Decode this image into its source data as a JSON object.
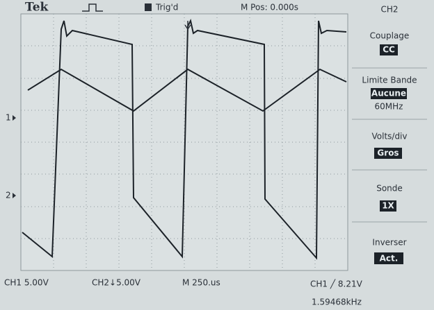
{
  "header": {
    "brand": "Tek",
    "trigger": "Trig'd",
    "position": "M Pos: 0.000s",
    "channel": "CH2"
  },
  "markers": [
    "1",
    "2"
  ],
  "menu": [
    {
      "label": "Couplage",
      "value": "CC"
    },
    {
      "label": "Limite Bande",
      "value": "Aucune",
      "note": "60MHz"
    },
    {
      "label": "Volts/div",
      "value": "Gros"
    },
    {
      "label": "Sonde",
      "value": "1X"
    },
    {
      "label": "Inverser",
      "value": "Act."
    }
  ],
  "footer": {
    "ch1": "CH1  5.00V",
    "ch2": "CH2↓5.00V",
    "time": "M 250.us",
    "trigger": "CH1 ╱ 8.21V",
    "frequency": "1.59468kHz"
  }
}
